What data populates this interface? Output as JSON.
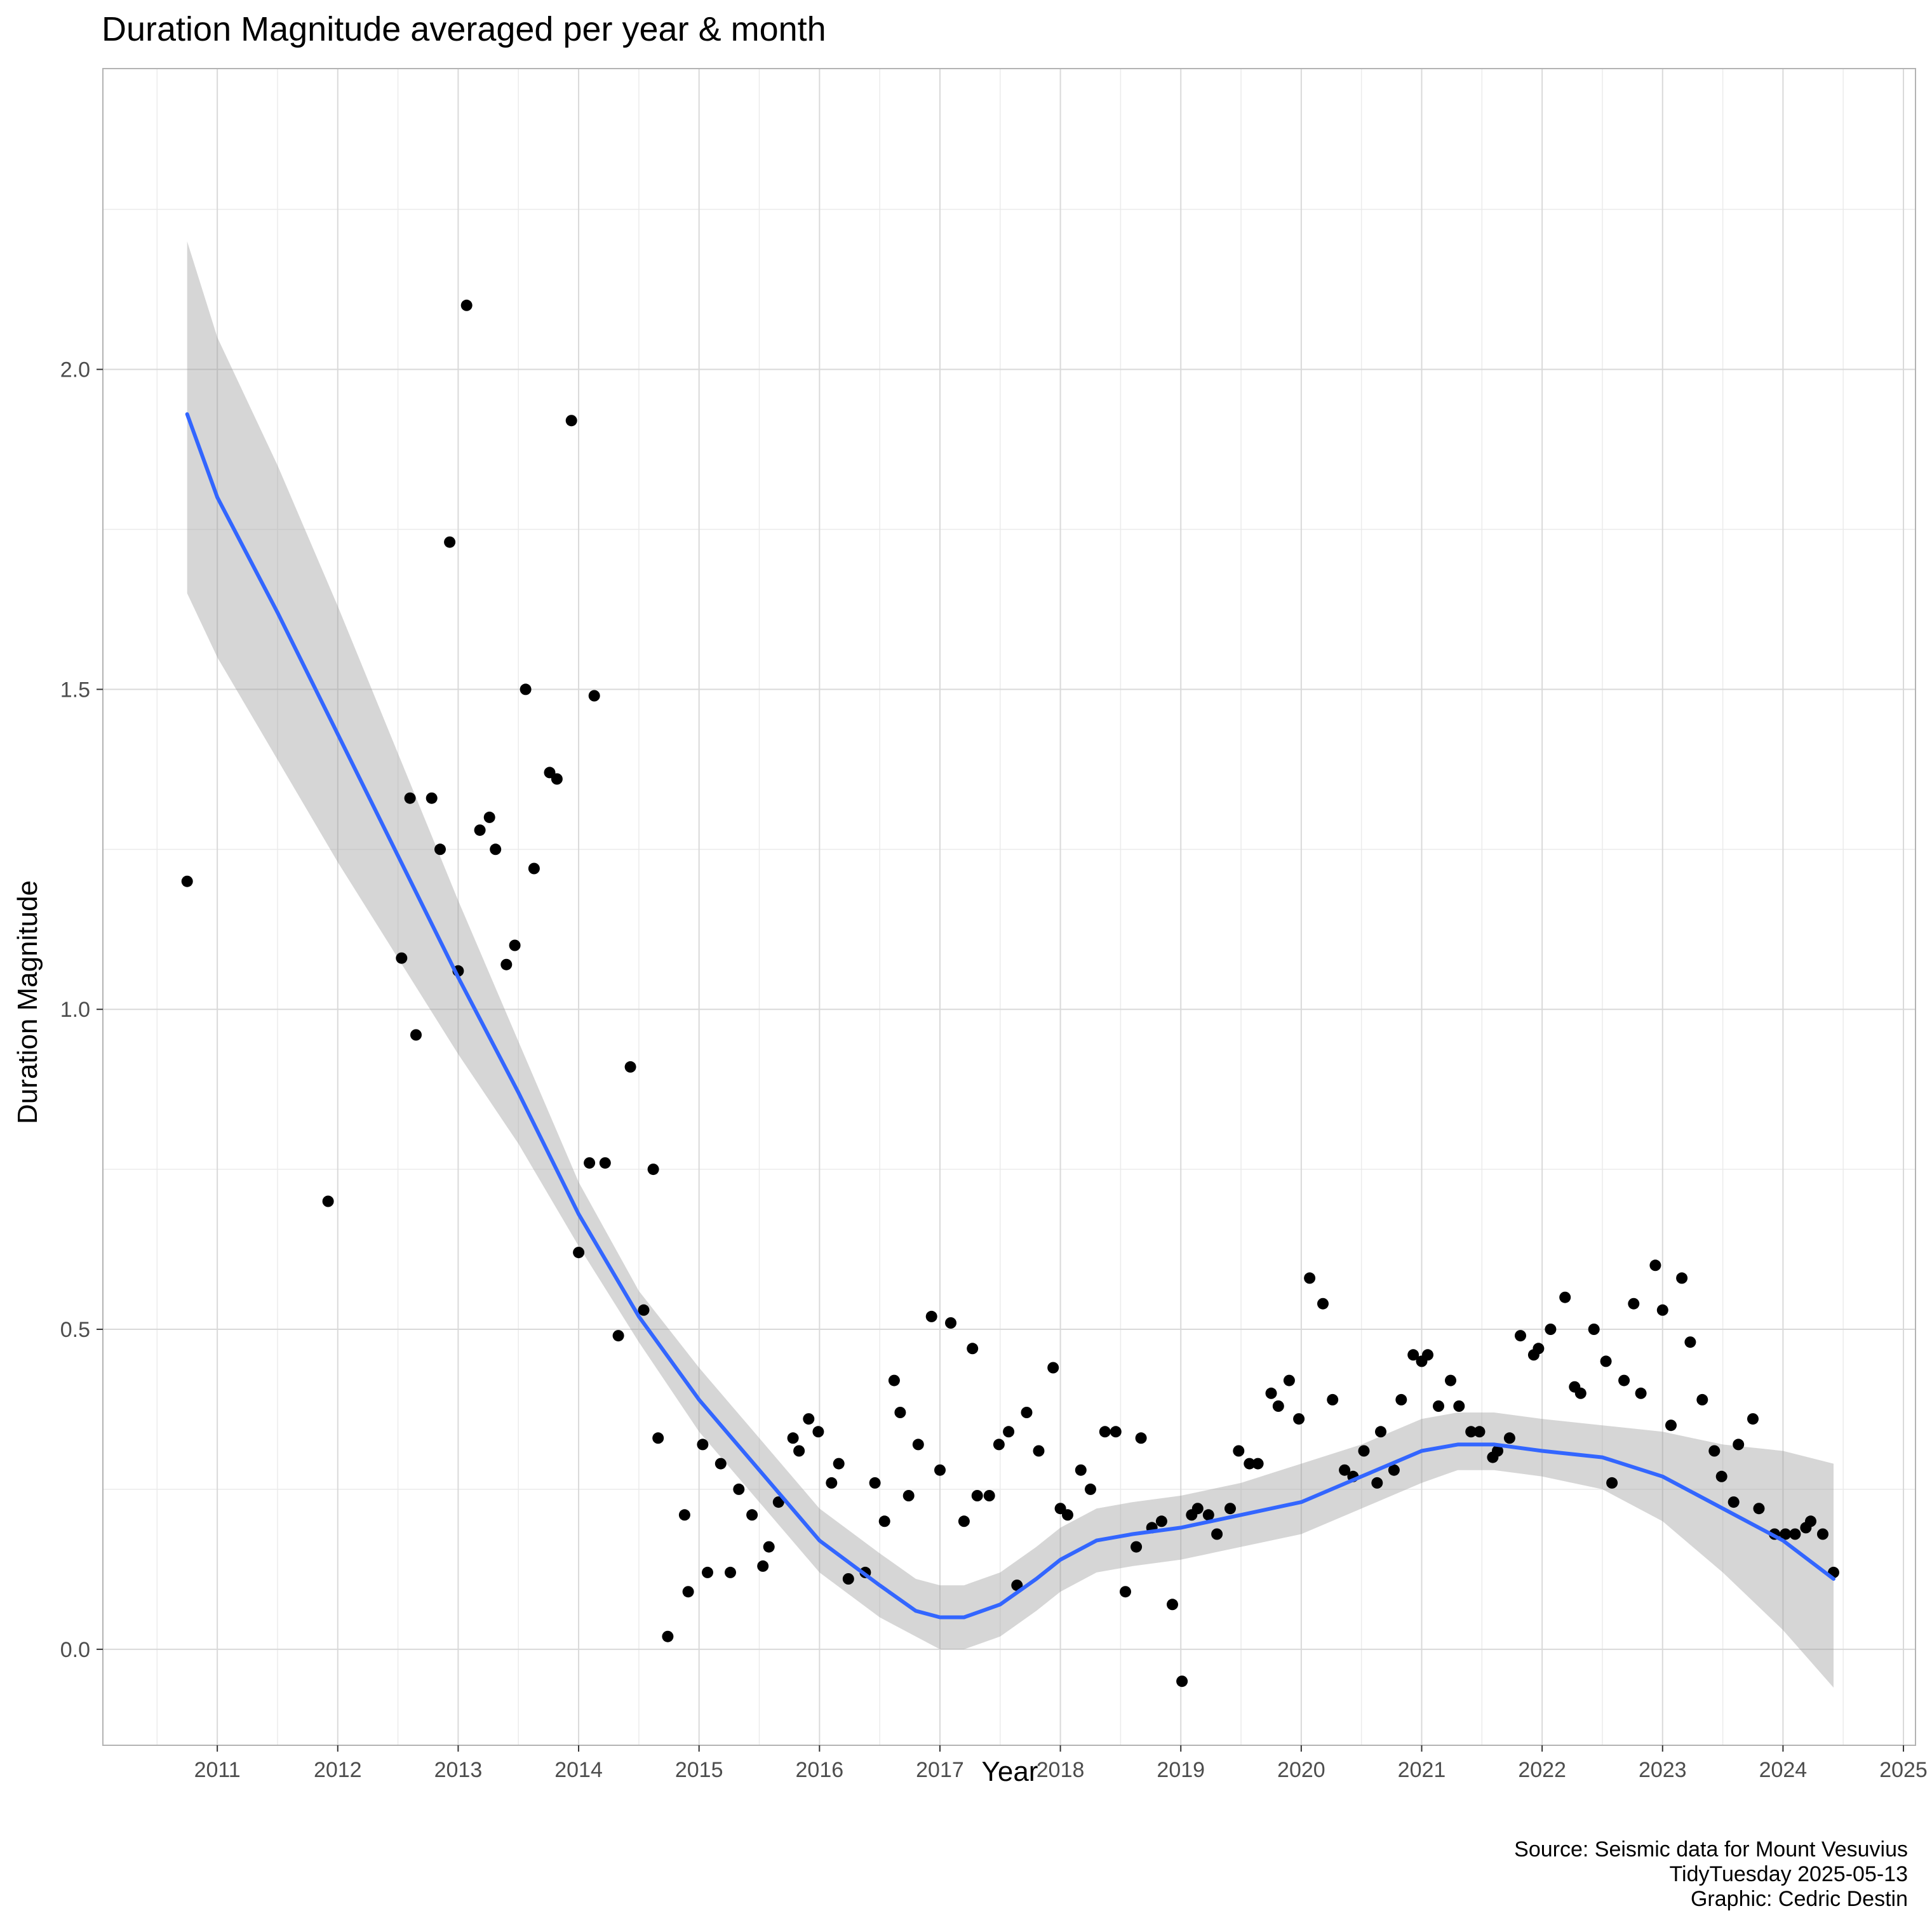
{
  "chart_data": {
    "type": "scatter",
    "title": "Duration Magnitude averaged per year & month",
    "xlabel": "Year",
    "ylabel": "Duration Magnitude",
    "x_ticks": [
      "2011",
      "2012",
      "2013",
      "2014",
      "2015",
      "2016",
      "2017",
      "2018",
      "2019",
      "2020",
      "2021",
      "2022",
      "2023",
      "2024",
      "2025"
    ],
    "y_ticks": [
      "0.0",
      "0.5",
      "1.0",
      "1.5",
      "2.0"
    ],
    "xlim": [
      2010.05,
      2025.1
    ],
    "ylim": [
      -0.15,
      2.47
    ],
    "grid": true,
    "points": [
      [
        2010.75,
        1.2
      ],
      [
        2011.92,
        0.7
      ],
      [
        2012.53,
        1.08
      ],
      [
        2012.6,
        1.33
      ],
      [
        2012.65,
        0.96
      ],
      [
        2012.78,
        1.33
      ],
      [
        2012.85,
        1.25
      ],
      [
        2012.93,
        1.73
      ],
      [
        2013.0,
        1.06
      ],
      [
        2013.07,
        2.1
      ],
      [
        2013.18,
        1.28
      ],
      [
        2013.26,
        1.3
      ],
      [
        2013.31,
        1.25
      ],
      [
        2013.4,
        1.07
      ],
      [
        2013.47,
        1.1
      ],
      [
        2013.56,
        1.5
      ],
      [
        2013.63,
        1.22
      ],
      [
        2013.76,
        1.37
      ],
      [
        2013.82,
        1.36
      ],
      [
        2013.94,
        1.92
      ],
      [
        2014.0,
        0.62
      ],
      [
        2014.09,
        0.76
      ],
      [
        2014.13,
        1.49
      ],
      [
        2014.22,
        0.76
      ],
      [
        2014.33,
        0.49
      ],
      [
        2014.43,
        0.91
      ],
      [
        2014.54,
        0.53
      ],
      [
        2014.62,
        0.75
      ],
      [
        2014.66,
        0.33
      ],
      [
        2014.74,
        0.02
      ],
      [
        2014.88,
        0.21
      ],
      [
        2014.91,
        0.09
      ],
      [
        2015.03,
        0.32
      ],
      [
        2015.07,
        0.12
      ],
      [
        2015.18,
        0.29
      ],
      [
        2015.26,
        0.12
      ],
      [
        2015.33,
        0.25
      ],
      [
        2015.44,
        0.21
      ],
      [
        2015.53,
        0.13
      ],
      [
        2015.58,
        0.16
      ],
      [
        2015.66,
        0.23
      ],
      [
        2015.78,
        0.33
      ],
      [
        2015.83,
        0.31
      ],
      [
        2015.91,
        0.36
      ],
      [
        2015.99,
        0.34
      ],
      [
        2016.1,
        0.26
      ],
      [
        2016.16,
        0.29
      ],
      [
        2016.24,
        0.11
      ],
      [
        2016.38,
        0.12
      ],
      [
        2016.46,
        0.26
      ],
      [
        2016.54,
        0.2
      ],
      [
        2016.62,
        0.42
      ],
      [
        2016.67,
        0.37
      ],
      [
        2016.74,
        0.24
      ],
      [
        2016.82,
        0.32
      ],
      [
        2016.93,
        0.52
      ],
      [
        2017.0,
        0.28
      ],
      [
        2017.09,
        0.51
      ],
      [
        2017.2,
        0.2
      ],
      [
        2017.27,
        0.47
      ],
      [
        2017.31,
        0.24
      ],
      [
        2017.41,
        0.24
      ],
      [
        2017.49,
        0.32
      ],
      [
        2017.57,
        0.34
      ],
      [
        2017.64,
        0.1
      ],
      [
        2017.72,
        0.37
      ],
      [
        2017.82,
        0.31
      ],
      [
        2017.94,
        0.44
      ],
      [
        2018.0,
        0.22
      ],
      [
        2018.06,
        0.21
      ],
      [
        2018.17,
        0.28
      ],
      [
        2018.25,
        0.25
      ],
      [
        2018.37,
        0.34
      ],
      [
        2018.46,
        0.34
      ],
      [
        2018.54,
        0.09
      ],
      [
        2018.63,
        0.16
      ],
      [
        2018.67,
        0.33
      ],
      [
        2018.76,
        0.19
      ],
      [
        2018.84,
        0.2
      ],
      [
        2018.93,
        0.07
      ],
      [
        2019.01,
        -0.05
      ],
      [
        2019.09,
        0.21
      ],
      [
        2019.14,
        0.22
      ],
      [
        2019.23,
        0.21
      ],
      [
        2019.3,
        0.18
      ],
      [
        2019.41,
        0.22
      ],
      [
        2019.48,
        0.31
      ],
      [
        2019.57,
        0.29
      ],
      [
        2019.64,
        0.29
      ],
      [
        2019.75,
        0.4
      ],
      [
        2019.81,
        0.38
      ],
      [
        2019.9,
        0.42
      ],
      [
        2019.98,
        0.36
      ],
      [
        2020.07,
        0.58
      ],
      [
        2020.18,
        0.54
      ],
      [
        2020.26,
        0.39
      ],
      [
        2020.36,
        0.28
      ],
      [
        2020.43,
        0.27
      ],
      [
        2020.52,
        0.31
      ],
      [
        2020.63,
        0.26
      ],
      [
        2020.66,
        0.34
      ],
      [
        2020.77,
        0.28
      ],
      [
        2020.83,
        0.39
      ],
      [
        2020.93,
        0.46
      ],
      [
        2021.0,
        0.45
      ],
      [
        2021.05,
        0.46
      ],
      [
        2021.14,
        0.38
      ],
      [
        2021.24,
        0.42
      ],
      [
        2021.31,
        0.38
      ],
      [
        2021.41,
        0.34
      ],
      [
        2021.48,
        0.34
      ],
      [
        2021.59,
        0.3
      ],
      [
        2021.63,
        0.31
      ],
      [
        2021.73,
        0.33
      ],
      [
        2021.82,
        0.49
      ],
      [
        2021.93,
        0.46
      ],
      [
        2021.97,
        0.47
      ],
      [
        2022.07,
        0.5
      ],
      [
        2022.19,
        0.55
      ],
      [
        2022.27,
        0.41
      ],
      [
        2022.32,
        0.4
      ],
      [
        2022.43,
        0.5
      ],
      [
        2022.53,
        0.45
      ],
      [
        2022.58,
        0.26
      ],
      [
        2022.68,
        0.42
      ],
      [
        2022.76,
        0.54
      ],
      [
        2022.82,
        0.4
      ],
      [
        2022.94,
        0.6
      ],
      [
        2023.0,
        0.53
      ],
      [
        2023.07,
        0.35
      ],
      [
        2023.16,
        0.58
      ],
      [
        2023.23,
        0.48
      ],
      [
        2023.33,
        0.39
      ],
      [
        2023.43,
        0.31
      ],
      [
        2023.49,
        0.27
      ],
      [
        2023.59,
        0.23
      ],
      [
        2023.63,
        0.32
      ],
      [
        2023.75,
        0.36
      ],
      [
        2023.8,
        0.22
      ],
      [
        2023.93,
        0.18
      ],
      [
        2024.02,
        0.18
      ],
      [
        2024.1,
        0.18
      ],
      [
        2024.19,
        0.19
      ],
      [
        2024.23,
        0.2
      ],
      [
        2024.33,
        0.18
      ],
      [
        2024.42,
        0.12
      ]
    ],
    "smooth": {
      "method": "loess",
      "color": "#3366FF",
      "x": [
        2010.75,
        2011.0,
        2011.5,
        2012.0,
        2012.5,
        2013.0,
        2013.5,
        2014.0,
        2014.5,
        2015.0,
        2015.5,
        2016.0,
        2016.5,
        2016.8,
        2017.0,
        2017.2,
        2017.5,
        2017.8,
        2018.0,
        2018.3,
        2018.6,
        2019.0,
        2019.5,
        2020.0,
        2020.5,
        2021.0,
        2021.3,
        2021.6,
        2022.0,
        2022.5,
        2023.0,
        2023.5,
        2024.0,
        2024.42
      ],
      "y": [
        1.93,
        1.8,
        1.62,
        1.43,
        1.24,
        1.05,
        0.87,
        0.68,
        0.52,
        0.39,
        0.28,
        0.17,
        0.1,
        0.06,
        0.05,
        0.05,
        0.07,
        0.11,
        0.14,
        0.17,
        0.18,
        0.19,
        0.21,
        0.23,
        0.27,
        0.31,
        0.32,
        0.32,
        0.31,
        0.3,
        0.27,
        0.22,
        0.17,
        0.11
      ],
      "lower": [
        1.65,
        1.55,
        1.39,
        1.23,
        1.08,
        0.93,
        0.79,
        0.63,
        0.48,
        0.34,
        0.23,
        0.12,
        0.05,
        0.02,
        0.0,
        0.0,
        0.02,
        0.06,
        0.09,
        0.12,
        0.13,
        0.14,
        0.16,
        0.18,
        0.22,
        0.26,
        0.28,
        0.28,
        0.27,
        0.25,
        0.2,
        0.12,
        0.03,
        -0.06
      ],
      "upper": [
        2.2,
        2.05,
        1.85,
        1.63,
        1.4,
        1.17,
        0.95,
        0.73,
        0.56,
        0.44,
        0.33,
        0.22,
        0.15,
        0.11,
        0.1,
        0.1,
        0.12,
        0.16,
        0.19,
        0.22,
        0.23,
        0.24,
        0.26,
        0.29,
        0.32,
        0.36,
        0.37,
        0.37,
        0.36,
        0.35,
        0.34,
        0.32,
        0.31,
        0.29
      ]
    }
  },
  "caption": {
    "source": "Source: Seismic data for Mount Vesuvius",
    "tidytuesday": "TidyTuesday 2025-05-13",
    "graphic": "Graphic: Cedric Destin"
  }
}
